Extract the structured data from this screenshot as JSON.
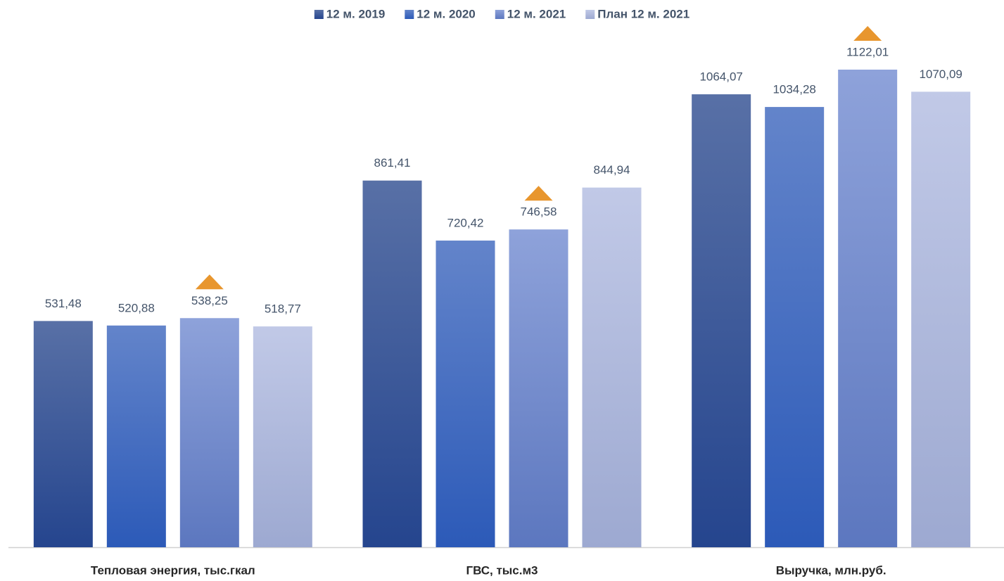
{
  "chart_data": {
    "type": "bar",
    "categories": [
      "Тепловая энергия, тыс.гкал",
      "ГВС, тыс.м3",
      "Выручка, млн.руб."
    ],
    "series": [
      {
        "name": "12 м. 2019",
        "color": "#5870a6",
        "gradient_end": "#25458e",
        "values": [
          531.48,
          861.41,
          1064.07
        ],
        "value_labels": [
          "531,48",
          "861,41",
          "1064,07"
        ]
      },
      {
        "name": "12 м. 2020",
        "color": "#6384ca",
        "gradient_end": "#2c5ab8",
        "values": [
          520.88,
          720.42,
          1034.28
        ],
        "value_labels": [
          "520,88",
          "720,42",
          "1034,28"
        ]
      },
      {
        "name": "12 м. 2021",
        "color": "#8ea2da",
        "gradient_end": "#5c77bf",
        "marker_color": "#e8962e",
        "values": [
          538.25,
          746.58,
          1122.01
        ],
        "value_labels": [
          "538,25",
          "746,58",
          "1122,01"
        ]
      },
      {
        "name": "План 12 м. 2021",
        "color": "#c1c9e7",
        "gradient_end": "#9da9d1",
        "values": [
          518.77,
          844.94,
          1070.09
        ],
        "value_labels": [
          "518,77",
          "844,94",
          "1070,09"
        ]
      }
    ]
  }
}
